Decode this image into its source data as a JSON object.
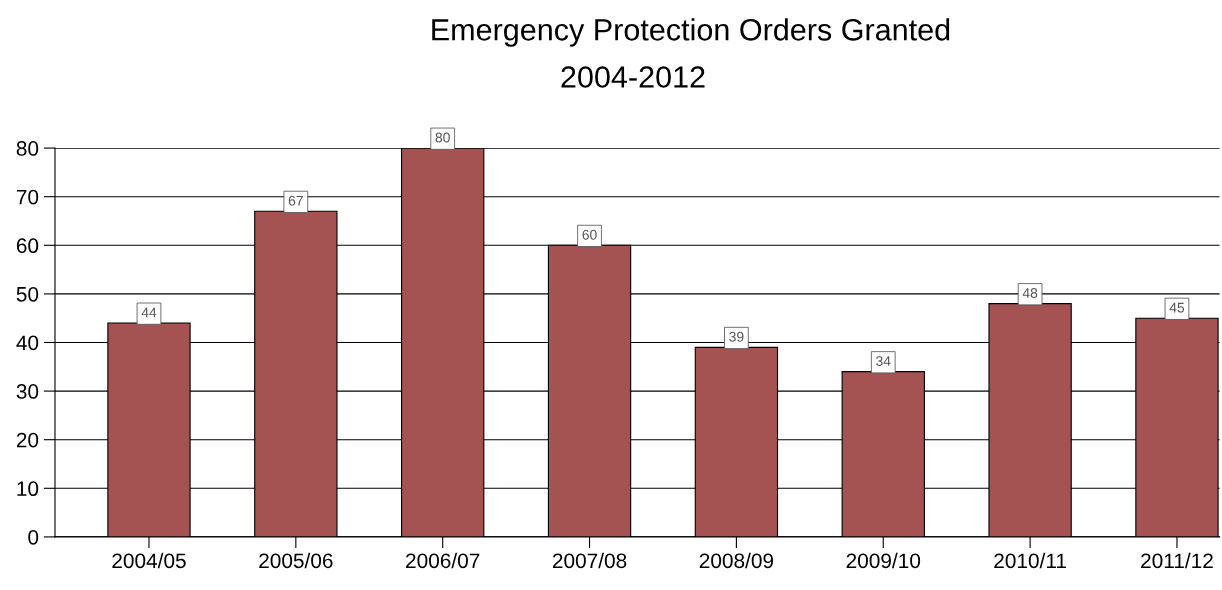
{
  "chart_data": {
    "type": "bar",
    "title": "Emergency Protection Orders Granted",
    "subtitle": "2004-2012",
    "categories": [
      "2004/05",
      "2005/06",
      "2006/07",
      "2007/08",
      "2008/09",
      "2009/10",
      "2010/11",
      "2011/12"
    ],
    "values": [
      44,
      67,
      80,
      60,
      39,
      34,
      48,
      45
    ],
    "color": "#a45252",
    "ylim": [
      0,
      80
    ],
    "yticks": [
      0,
      10,
      20,
      30,
      40,
      50,
      60,
      70,
      80
    ],
    "grid": "y",
    "data_labels": true,
    "legend": false
  }
}
